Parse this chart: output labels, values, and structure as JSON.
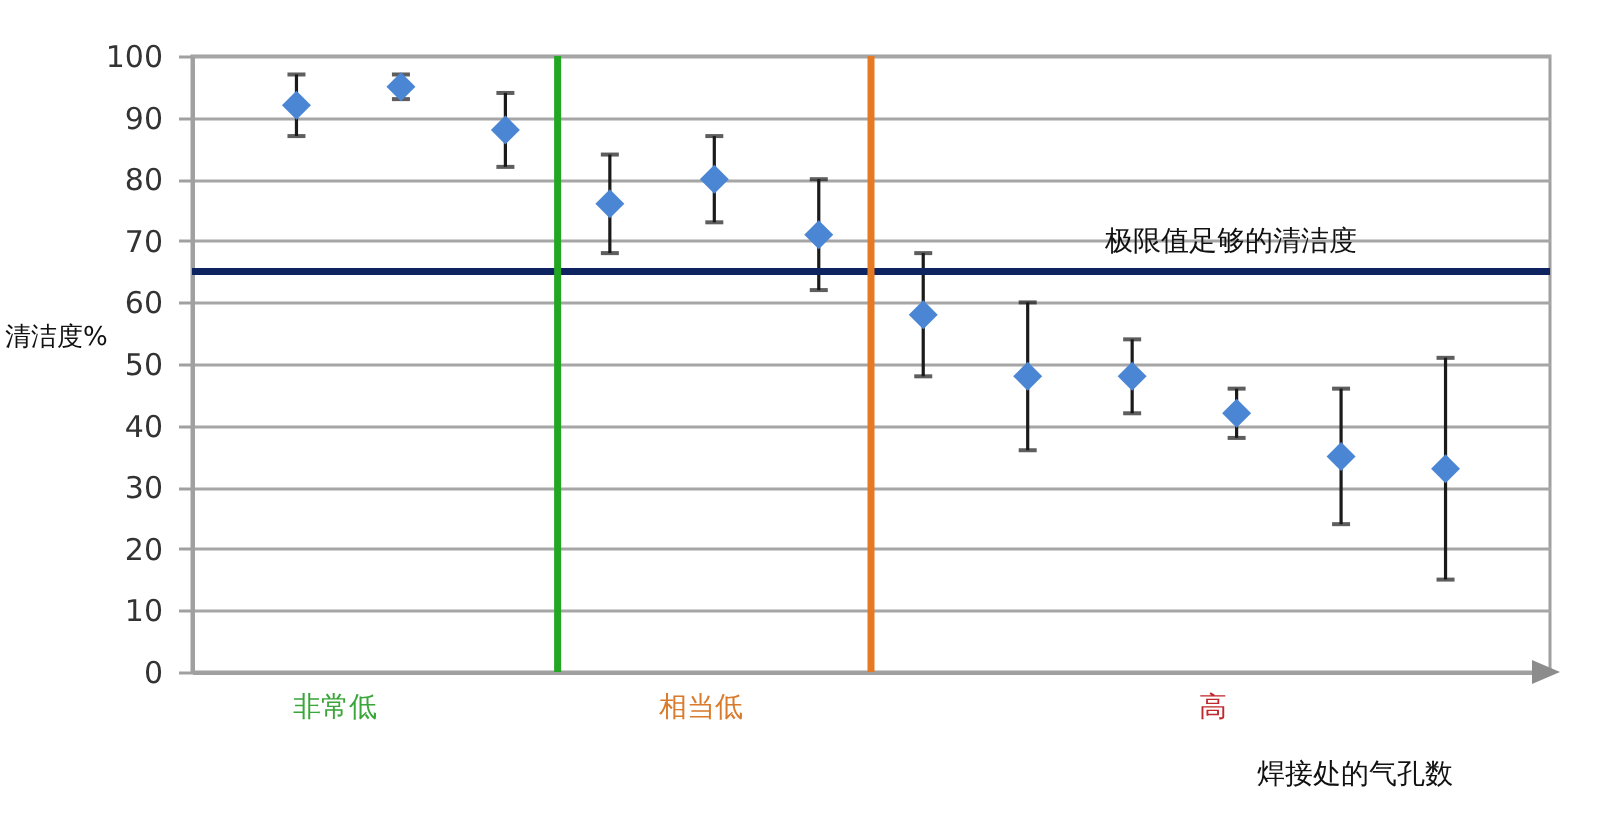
{
  "chart_data": {
    "type": "scatter",
    "categories": [
      null,
      null,
      null,
      null,
      null,
      null,
      null,
      null,
      null,
      null,
      null,
      null
    ],
    "values": [
      92,
      95,
      88,
      76,
      80,
      71,
      58,
      48,
      48,
      42,
      35,
      33
    ],
    "errors": [
      5,
      2,
      6,
      8,
      7,
      9,
      10,
      12,
      6,
      4,
      11,
      18
    ],
    "color": "#4a86d4",
    "marker": "diamond",
    "ylim": [
      0,
      100
    ],
    "yticks": [
      0,
      10,
      20,
      30,
      40,
      50,
      60,
      70,
      80,
      90,
      100
    ],
    "xlabel": "焊接处的气孔数",
    "ylabel": "清洁度%",
    "grid": "y",
    "tick_labels": "y",
    "annotations": [
      "非常低",
      "相当低",
      "高"
    ],
    "ref_lines": [
      {
        "axis": "y",
        "value": 65,
        "label": "极限值足够的清洁度",
        "color": "#0e2461"
      }
    ]
  }
}
